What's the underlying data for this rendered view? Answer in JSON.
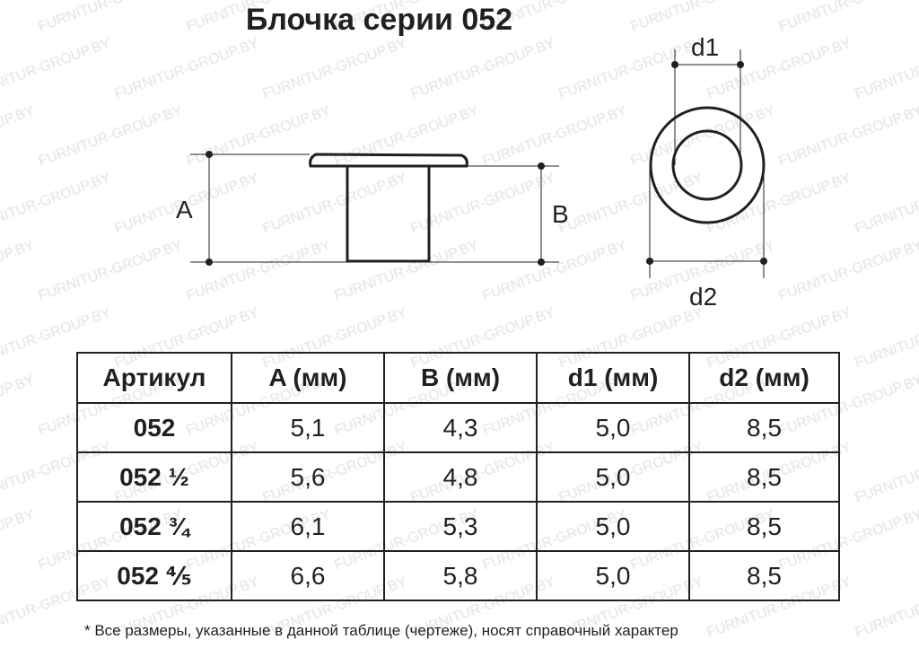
{
  "title": "Блочка серии 052",
  "watermark": "FURNITUR-GROUP.BY",
  "drawing": {
    "label_a": "A",
    "label_b": "B",
    "label_d1": "d1",
    "label_d2": "d2"
  },
  "table": {
    "headers": [
      "Артикул",
      "A (мм)",
      "B (мм)",
      "d1 (мм)",
      "d2 (мм)"
    ],
    "rows": [
      [
        "052",
        "5,1",
        "4,3",
        "5,0",
        "8,5"
      ],
      [
        "052 ½",
        "5,6",
        "4,8",
        "5,0",
        "8,5"
      ],
      [
        "052 ¾",
        "6,1",
        "5,3",
        "5,0",
        "8,5"
      ],
      [
        "052 ⅘",
        "6,6",
        "5,8",
        "5,0",
        "8,5"
      ]
    ]
  },
  "note": "* Все размеры, указанные в данной таблице (чертеже), носят справочный характер"
}
